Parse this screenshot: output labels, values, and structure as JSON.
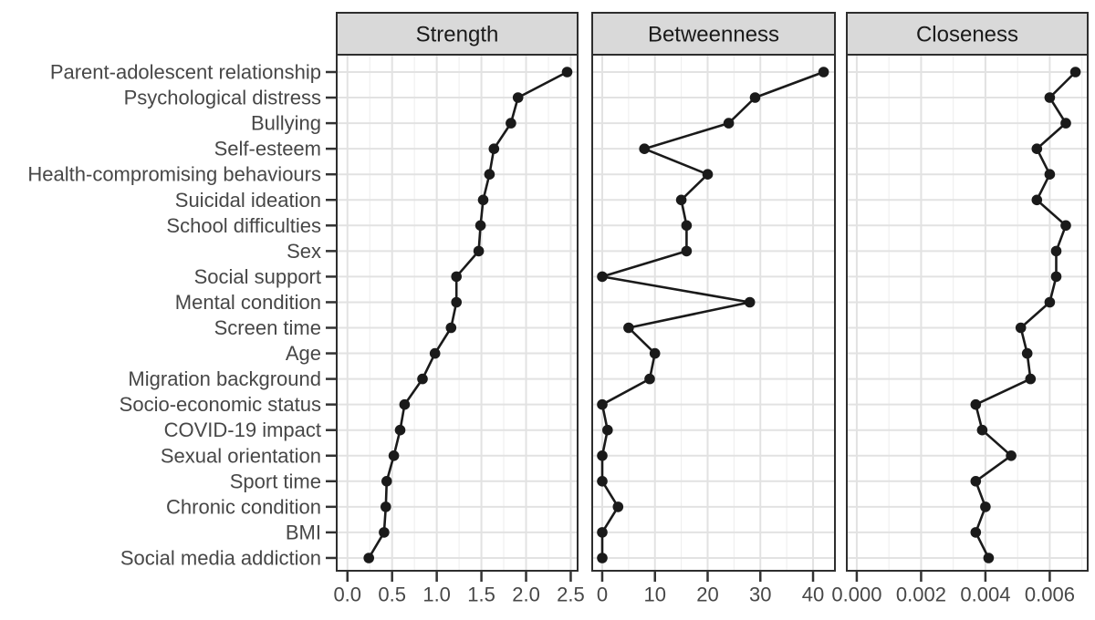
{
  "chart_data": {
    "type": "line",
    "subtype": "centrality-dot-line-plot",
    "orientation": "horizontal",
    "grid": true,
    "legend": "none",
    "categories": [
      "Parent-adolescent relationship",
      "Psychological distress",
      "Bullying",
      "Self-esteem",
      "Health-compromising behaviours",
      "Suicidal ideation",
      "School difficulties",
      "Sex",
      "Social support",
      "Mental condition",
      "Screen time",
      "Age",
      "Migration background",
      "Socio-economic status",
      "COVID-19 impact",
      "Sexual orientation",
      "Sport time",
      "Chronic condition",
      "BMI",
      "Social media addiction"
    ],
    "panels": [
      {
        "title": "Strength",
        "xlim": [
          -0.12,
          2.577
        ],
        "values": [
          2.46,
          1.91,
          1.83,
          1.64,
          1.59,
          1.52,
          1.49,
          1.47,
          1.22,
          1.22,
          1.16,
          0.98,
          0.84,
          0.64,
          0.59,
          0.52,
          0.44,
          0.43,
          0.41,
          0.24
        ],
        "ticks": [
          {
            "value": 0,
            "label": "0.0"
          },
          {
            "value": 0.5,
            "label": "0.5"
          },
          {
            "value": 1.0,
            "label": "1.0"
          },
          {
            "value": 1.5,
            "label": "1.5"
          },
          {
            "value": 2.0,
            "label": "2.0"
          },
          {
            "value": 2.5,
            "label": "2.5"
          }
        ],
        "minor_ticks": [
          0.25,
          0.75,
          1.25,
          1.75,
          2.25
        ]
      },
      {
        "title": "Betweenness",
        "xlim": [
          -1.9,
          44.15
        ],
        "values": [
          42,
          29,
          24,
          8,
          20,
          15,
          16,
          16,
          0,
          28,
          5,
          10,
          9,
          0,
          1,
          0,
          0,
          3,
          0,
          0
        ],
        "ticks": [
          {
            "value": 0,
            "label": "0"
          },
          {
            "value": 10,
            "label": "10"
          },
          {
            "value": 20,
            "label": "20"
          },
          {
            "value": 30,
            "label": "30"
          },
          {
            "value": 40,
            "label": "40"
          }
        ],
        "minor_ticks": [
          5,
          15,
          25,
          35
        ]
      },
      {
        "title": "Closeness",
        "xlim": [
          -0.00031,
          0.00718
        ],
        "values": [
          0.0068,
          0.006,
          0.0065,
          0.0056,
          0.006,
          0.0056,
          0.0065,
          0.0062,
          0.0062,
          0.006,
          0.0051,
          0.0053,
          0.0054,
          0.0037,
          0.0039,
          0.0048,
          0.0037,
          0.004,
          0.0037,
          0.0041
        ],
        "ticks": [
          {
            "value": 0,
            "label": "0.000"
          },
          {
            "value": 0.002,
            "label": "0.002"
          },
          {
            "value": 0.004,
            "label": "0.004"
          },
          {
            "value": 0.006,
            "label": "0.006"
          }
        ],
        "minor_ticks": [
          0.001,
          0.003,
          0.005,
          0.007
        ]
      }
    ],
    "colors": {
      "background": "#ffffff",
      "panel_fill": "#ffffff",
      "panel_border": "#2e2e2e",
      "strip_fill": "#d9d9d9",
      "strip_border": "#2e2e2e",
      "grid_major": "#e2e2e2",
      "grid_minor": "#ededed",
      "data_line": "#1a1a1a",
      "data_point": "#1a1a1a",
      "axis_text": "#474747",
      "strip_text": "#1a1a1a",
      "tick_mark": "#333333"
    }
  }
}
